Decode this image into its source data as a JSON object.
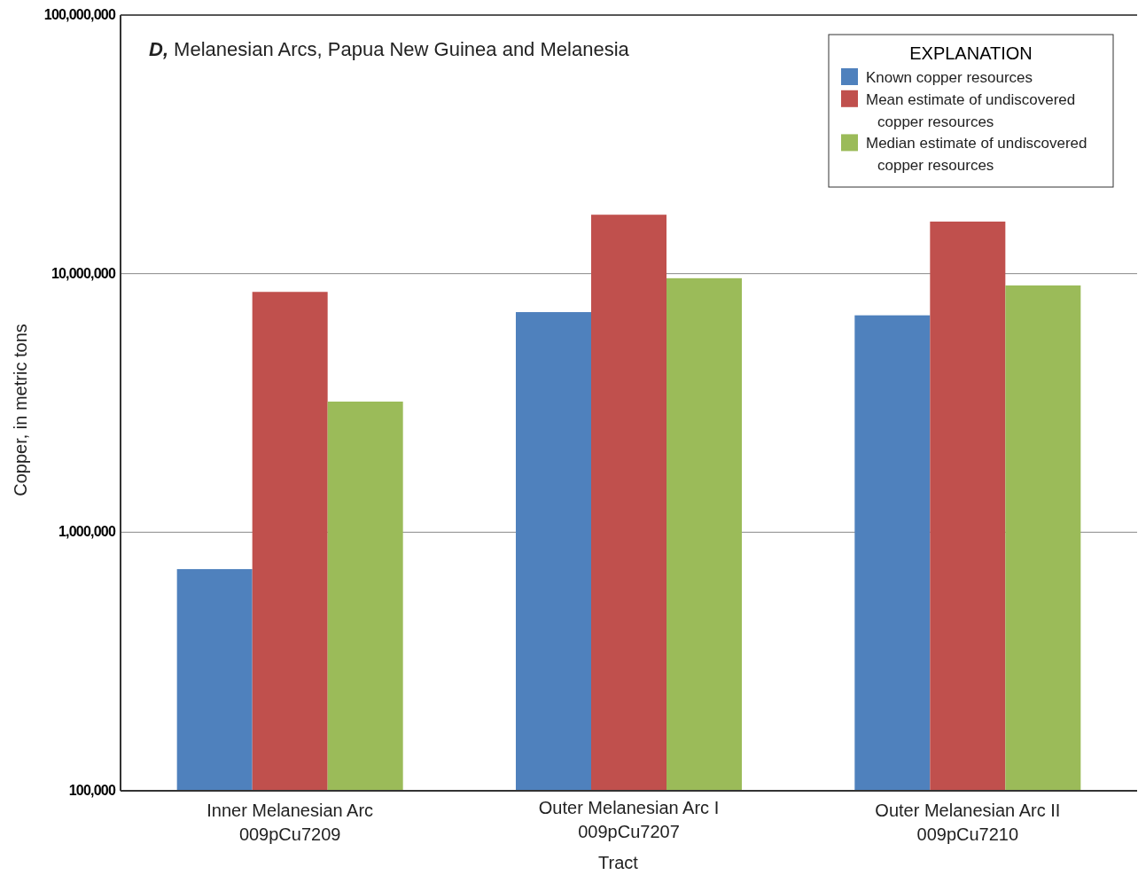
{
  "chart_data": {
    "type": "bar",
    "title": "D, Melanesian Arcs, Papua New Guinea and Melanesia",
    "xlabel": "Tract",
    "ylabel": "Copper, in metric tons",
    "legend_title": "EXPLANATION",
    "categories": [
      "Inner Melanesian Arc\n009pCu7209",
      "Outer Melanesian Arc I\n009pCu7207",
      "Outer Melanesian Arc II\n009pCu7210"
    ],
    "series": [
      {
        "name": "Known copper resources",
        "color": "#4f81bd",
        "values": [
          720000,
          7100000,
          6900000
        ]
      },
      {
        "name": "Mean estimate of undiscovered copper resources",
        "color": "#c0504d",
        "values": [
          8500000,
          16900000,
          15900000
        ]
      },
      {
        "name": "Median estimate of undiscovered copper resources",
        "color": "#9bbb59",
        "values": [
          3200000,
          9600000,
          9000000
        ]
      }
    ],
    "log": true,
    "ylim": [
      100000,
      100000000
    ],
    "yticks": [
      {
        "value": 100000,
        "label": "100,000"
      },
      {
        "value": 1000000,
        "label": "1,000,000"
      },
      {
        "value": 10000000,
        "label": "10,000,000"
      },
      {
        "value": 100000000,
        "label": "100,000,000"
      }
    ],
    "grid": "y",
    "legend": "top right"
  }
}
